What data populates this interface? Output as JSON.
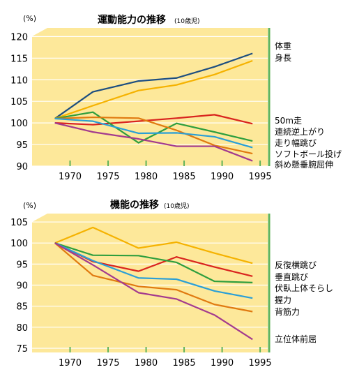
{
  "chart_data": [
    {
      "type": "line",
      "title": "運動能力の推移",
      "title_note": "(10歳児)",
      "ylabel": "(%)",
      "ylim": [
        90,
        122
      ],
      "y_ticks": [
        90,
        95,
        100,
        105,
        110,
        115,
        120
      ],
      "x_ticks": [
        1970,
        1975,
        1980,
        1985,
        1990,
        1995
      ],
      "xlim": [
        1965,
        1996
      ],
      "background": "#fde89a",
      "grid": true,
      "series": [
        {
          "name": "体重",
          "color": "#1d4e80",
          "x": [
            1968,
            1973,
            1979,
            1984,
            1989,
            1994
          ],
          "values": [
            101,
            107.2,
            109.7,
            110.4,
            113.0,
            116.1
          ]
        },
        {
          "name": "身長",
          "color": "#f5b200",
          "x": [
            1968,
            1973,
            1979,
            1984,
            1989,
            1994
          ],
          "values": [
            101,
            104.0,
            107.5,
            108.8,
            111.2,
            114.4
          ]
        },
        {
          "name": "50m走",
          "color": "#d9241e",
          "x": [
            1968,
            1973,
            1979,
            1984,
            1989,
            1994
          ],
          "values": [
            100,
            99.6,
            100.4,
            101.1,
            101.9,
            99.8
          ]
        },
        {
          "name": "連続逆上がり",
          "color": "#2e9e3e",
          "x": [
            1968,
            1973,
            1979,
            1984,
            1989,
            1994
          ],
          "values": [
            101,
            102.5,
            95.4,
            99.9,
            97.9,
            95.8
          ]
        },
        {
          "name": "走り幅跳び",
          "color": "#e07a10",
          "x": [
            1968,
            1973,
            1979,
            1984,
            1989,
            1994
          ],
          "values": [
            101,
            101.3,
            101.1,
            98.3,
            94.8,
            92.9
          ]
        },
        {
          "name": "ソフトボール投げ",
          "color": "#2a9fd6",
          "x": [
            1968,
            1973,
            1979,
            1984,
            1989,
            1994
          ],
          "values": [
            101,
            100.4,
            97.6,
            97.7,
            96.8,
            94.3
          ]
        },
        {
          "name": "斜め懸垂腕屈伸",
          "color": "#a33a8e",
          "x": [
            1968,
            1973,
            1979,
            1984,
            1989,
            1994
          ],
          "values": [
            100,
            97.9,
            96.3,
            94.6,
            94.6,
            91.2
          ]
        }
      ]
    },
    {
      "type": "line",
      "title": "機能の推移",
      "title_note": "(10歳児)",
      "ylabel": "(%)",
      "ylim": [
        74,
        107
      ],
      "y_ticks": [
        75,
        80,
        85,
        90,
        95,
        100,
        105
      ],
      "x_ticks": [
        1970,
        1975,
        1980,
        1985,
        1990,
        1995
      ],
      "xlim": [
        1965,
        1996
      ],
      "background": "#fde89a",
      "grid": true,
      "series": [
        {
          "name": "",
          "color": "#f5b200",
          "x": [
            1968,
            1973,
            1979,
            1984,
            1989,
            1994
          ],
          "values": [
            100,
            103.7,
            98.8,
            100.2,
            97.6,
            95.2
          ]
        },
        {
          "name": "反復横跳び",
          "color": "#d9241e",
          "x": [
            1968,
            1973,
            1979,
            1984,
            1989,
            1994
          ],
          "values": [
            100,
            95.6,
            93.3,
            96.7,
            94.3,
            92.1
          ]
        },
        {
          "name": "垂直跳び",
          "color": "#2e9e3e",
          "x": [
            1968,
            1973,
            1979,
            1984,
            1989,
            1994
          ],
          "values": [
            100,
            97.1,
            97.0,
            95.4,
            90.9,
            90.6
          ]
        },
        {
          "name": "伏臥上体そらし",
          "color": "#2a9fd6",
          "x": [
            1968,
            1973,
            1979,
            1984,
            1989,
            1994
          ],
          "values": [
            100,
            95.8,
            91.7,
            91.4,
            88.6,
            86.9
          ]
        },
        {
          "name": "握力",
          "color": "#e07a10",
          "x": [
            1968,
            1973,
            1979,
            1984,
            1989,
            1994
          ],
          "values": [
            100,
            92.3,
            89.7,
            88.9,
            85.4,
            83.7
          ]
        },
        {
          "name": "背筋力",
          "color": "#a33a8e",
          "x": [
            1968,
            1973,
            1979,
            1984,
            1989,
            1994
          ],
          "values": [
            100,
            94.8,
            88.2,
            86.7,
            82.9,
            77.1
          ]
        }
      ],
      "side_labels": [
        "反復横跳び",
        "垂直跳び",
        "伏臥上体そらし",
        "握力",
        "背筋力",
        "立位体前屈"
      ]
    }
  ]
}
